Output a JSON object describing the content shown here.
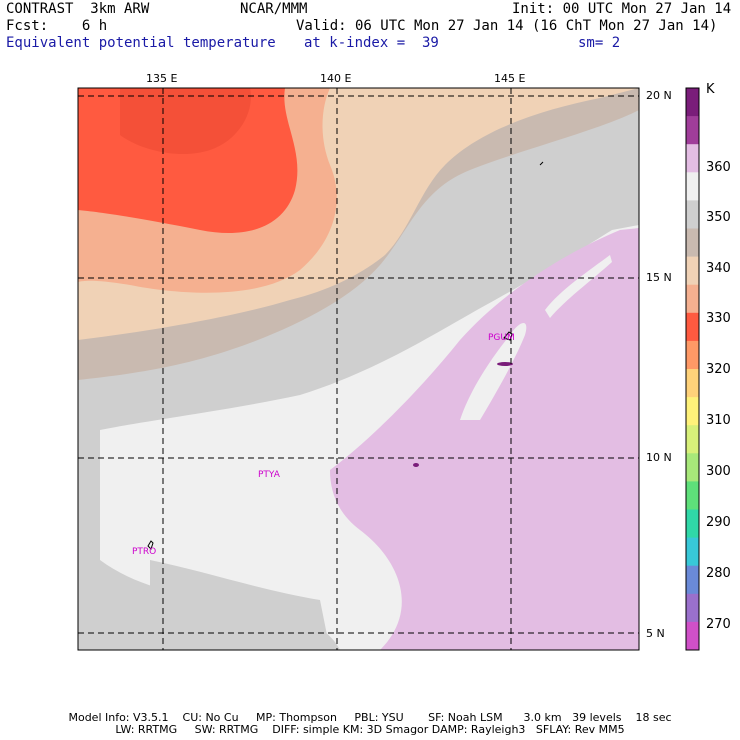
{
  "header": {
    "model": "CONTRAST  3km ARW",
    "org": "NCAR/MMM",
    "init": "Init: 00 UTC Mon 27 Jan 14",
    "fcst_label": "Fcst:    6 h",
    "valid": "Valid: 06 UTC Mon 27 Jan 14 (16 ChT Mon 27 Jan 14)",
    "field": "Equivalent potential temperature",
    "level": "at k-index =  39",
    "smooth": "sm= 2"
  },
  "map": {
    "lon_labels": [
      "135 E",
      "140 E",
      "145 E"
    ],
    "lat_labels": [
      "20 N",
      "15 N",
      "10 N",
      "5 N"
    ],
    "stations": [
      "PGUM",
      "PTYA",
      "PTRO"
    ]
  },
  "colorbar": {
    "unit": "K",
    "labels": [
      "360",
      "350",
      "340",
      "330",
      "320",
      "310",
      "300",
      "290",
      "280",
      "270"
    ],
    "colors": [
      "#7a1d7a",
      "#a03d9a",
      "#e3bde3",
      "#f0f0f0",
      "#cfcfcf",
      "#c9bab0",
      "#f0d2b6",
      "#f5b090",
      "#ff5a40",
      "#ff9966",
      "#ffd27a",
      "#fff27a",
      "#d8f07a",
      "#a8e87a",
      "#5ee07a",
      "#30d8a8",
      "#38c8d8",
      "#6a8ad8",
      "#9a70cc",
      "#d050c8"
    ]
  },
  "footer": {
    "line1": "Model Info: V3.5.1    CU: No Cu     MP: Thompson     PBL: YSU       SF: Noah LSM      3.0 km   39 levels    18 sec",
    "line2": "LW: RRTMG     SW: RRTMG    DIFF: simple KM: 3D Smagor DAMP: Rayleigh3   SFLAY: Rev MM5"
  }
}
